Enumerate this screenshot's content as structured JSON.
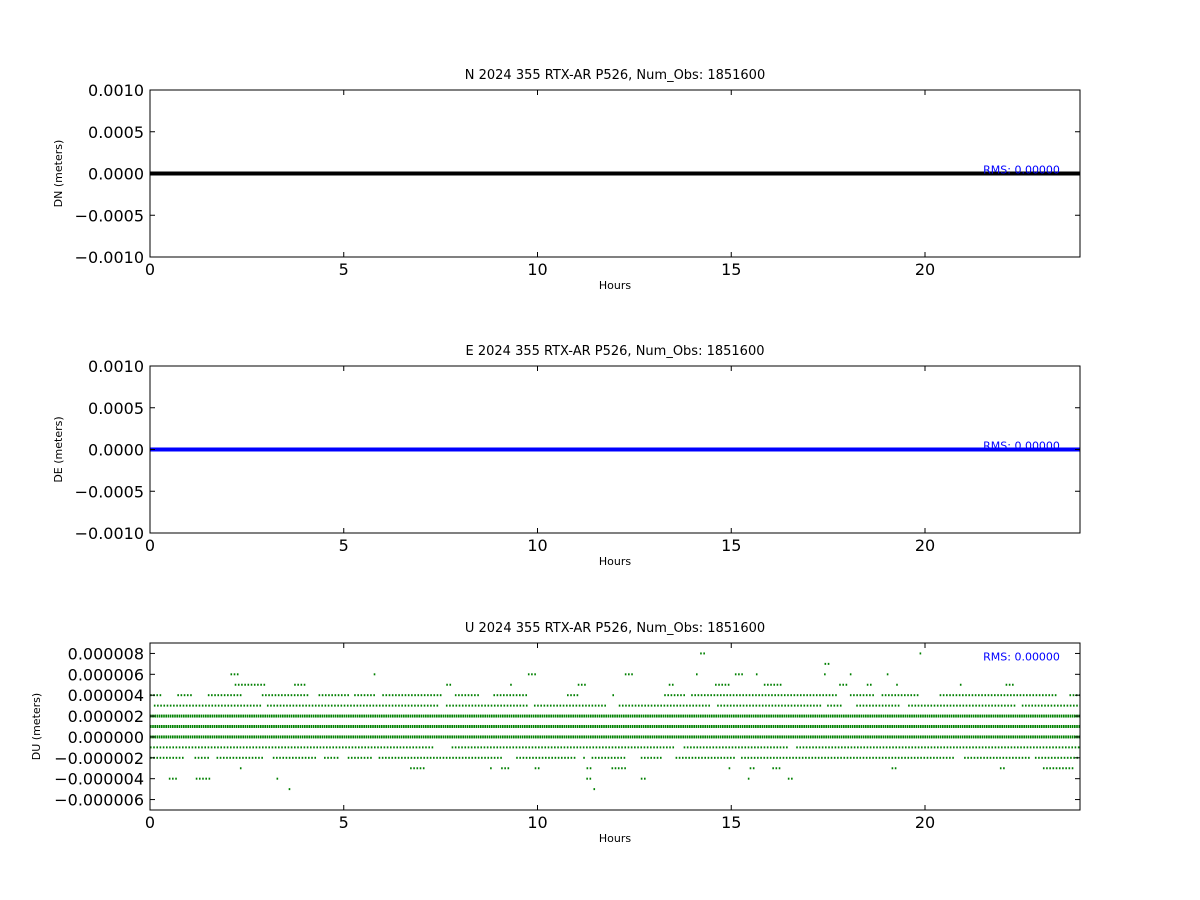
{
  "chart_data": [
    {
      "type": "line",
      "title": "N 2024 355 RTX-AR  P526, Num_Obs: 1851600",
      "xlabel": "Hours",
      "ylabel": "DN (meters)",
      "xlim": [
        0,
        24
      ],
      "ylim": [
        -0.001,
        0.001
      ],
      "x_ticks": [
        0,
        5,
        10,
        15,
        20
      ],
      "x_tick_labels": [
        "0",
        "5",
        "10",
        "15",
        "20"
      ],
      "y_ticks": [
        0.001,
        0.0005,
        0,
        -0.0005,
        -0.001
      ],
      "y_tick_labels": [
        "0.0010",
        "0.0005",
        "0.0000",
        "−0.0005",
        "−0.0010"
      ],
      "series": [
        {
          "color": "#000000",
          "x": [
            0,
            24
          ],
          "values": [
            0,
            0
          ]
        }
      ],
      "annotation": {
        "text": "RMS:  0.00000",
        "x": 21.5,
        "y": 5e-05,
        "color": "#0000ff"
      }
    },
    {
      "type": "line",
      "title": "E 2024 355 RTX-AR  P526, Num_Obs: 1851600",
      "xlabel": "Hours",
      "ylabel": "DE (meters)",
      "xlim": [
        0,
        24
      ],
      "ylim": [
        -0.001,
        0.001
      ],
      "x_ticks": [
        0,
        5,
        10,
        15,
        20
      ],
      "x_tick_labels": [
        "0",
        "5",
        "10",
        "15",
        "20"
      ],
      "y_ticks": [
        0.001,
        0.0005,
        0,
        -0.0005,
        -0.001
      ],
      "y_tick_labels": [
        "0.0010",
        "0.0005",
        "0.0000",
        "−0.0005",
        "−0.0010"
      ],
      "series": [
        {
          "color": "#0000ff",
          "x": [
            0,
            24
          ],
          "values": [
            0,
            0
          ]
        }
      ],
      "annotation": {
        "text": "RMS:  0.00000",
        "x": 21.5,
        "y": 5e-05,
        "color": "#0000ff"
      }
    },
    {
      "type": "scatter",
      "title": "U 2024 355 RTX-AR  P526, Num_Obs: 1851600",
      "xlabel": "Hours",
      "ylabel": "DU (meters)",
      "xlim": [
        0,
        24
      ],
      "ylim": [
        -7e-06,
        9e-06
      ],
      "x_ticks": [
        0,
        5,
        10,
        15,
        20
      ],
      "x_tick_labels": [
        "0",
        "5",
        "10",
        "15",
        "20"
      ],
      "y_ticks": [
        8e-06,
        6e-06,
        4e-06,
        2e-06,
        0,
        -2e-06,
        -4e-06,
        -6e-06
      ],
      "y_tick_labels": [
        "0.000008",
        "0.000006",
        "0.000004",
        "0.000002",
        "0.000000",
        "−0.000002",
        "−0.000004",
        "−0.000006"
      ],
      "series": [
        {
          "color": "#008000",
          "marker": "dot"
        }
      ],
      "bands": [
        {
          "y": 8e-06,
          "density": 0.02
        },
        {
          "y": 7e-06,
          "density": 0.04
        },
        {
          "y": 6e-06,
          "density": 0.1
        },
        {
          "y": 5e-06,
          "density": 0.3
        },
        {
          "y": 4e-06,
          "density": 0.5
        },
        {
          "y": 3e-06,
          "density": 0.8
        },
        {
          "y": 2e-06,
          "density": 1.0
        },
        {
          "y": 1e-06,
          "density": 1.0
        },
        {
          "y": 0.0,
          "density": 1.0
        },
        {
          "y": -1e-06,
          "density": 0.95
        },
        {
          "y": -2e-06,
          "density": 0.6
        },
        {
          "y": -3e-06,
          "density": 0.2
        },
        {
          "y": -4e-06,
          "density": 0.12
        },
        {
          "y": -5e-06,
          "density": 0.06
        },
        {
          "y": -6e-06,
          "density": 0.02
        },
        {
          "y": -7e-06,
          "density": 0.01
        }
      ],
      "annotation": {
        "text": "RMS:  0.00000",
        "x": 21.5,
        "y": 7.7e-06,
        "color": "#0000ff"
      }
    }
  ]
}
